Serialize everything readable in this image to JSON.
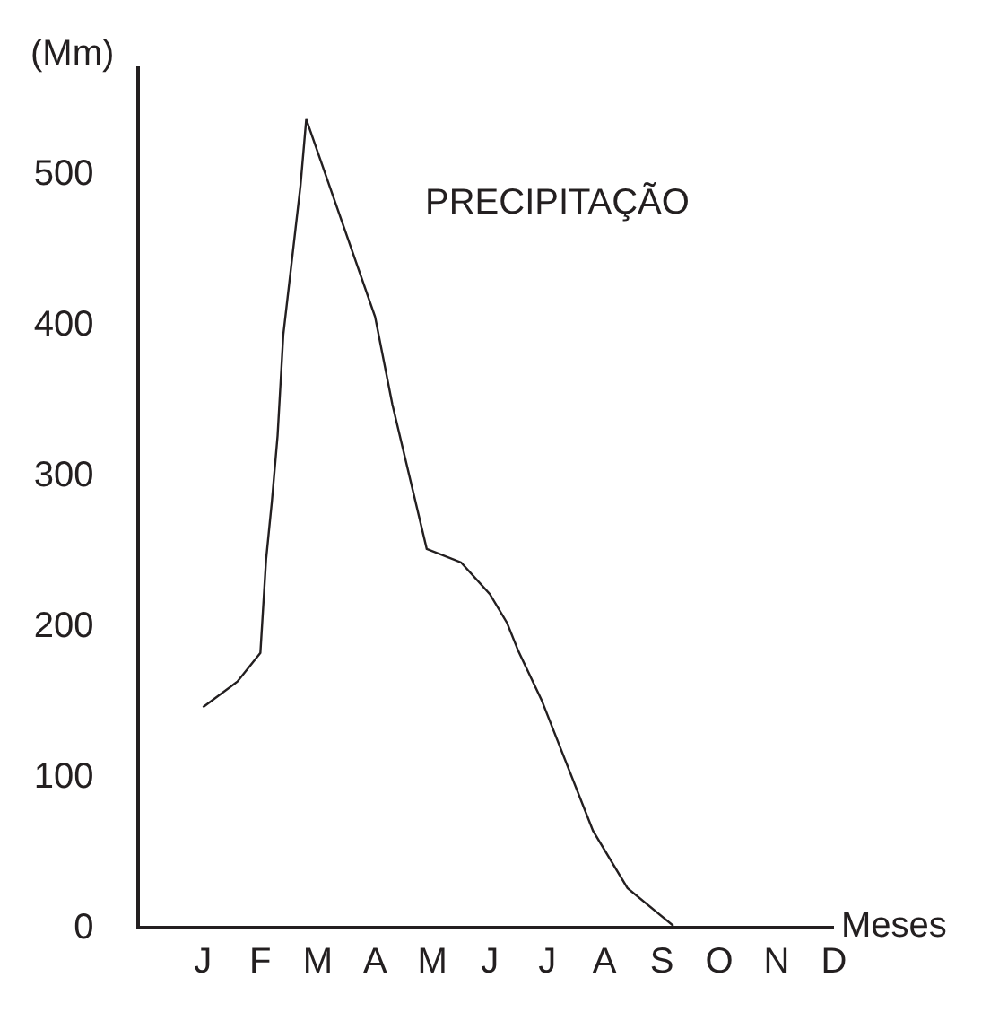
{
  "chart_data": {
    "type": "line",
    "title": "PRECIPITAÇÃO",
    "xlabel": "Meses",
    "ylabel": "(Mm)",
    "categories": [
      "J",
      null,
      null,
      null,
      null,
      null,
      null,
      null,
      null,
      null,
      "F",
      null,
      null,
      null,
      null,
      null,
      null,
      null,
      null,
      null,
      "M",
      null,
      null,
      null,
      null,
      null,
      null,
      null,
      null,
      null,
      "A",
      null,
      null,
      null,
      null,
      null,
      null,
      null,
      null,
      null,
      "M",
      null,
      null,
      null,
      null,
      null,
      null,
      null,
      null,
      null,
      "J",
      null,
      null,
      null,
      null,
      null,
      null,
      null,
      null,
      null,
      "J",
      null,
      null,
      null,
      null,
      null,
      null,
      null,
      null,
      null,
      "A",
      null,
      null,
      null,
      null,
      null,
      null,
      null,
      null,
      null,
      "S",
      null,
      null,
      null,
      null,
      null,
      null,
      null,
      null,
      null,
      "O",
      null,
      null,
      null,
      null,
      null,
      null,
      null,
      null,
      null,
      "N",
      null,
      null,
      null,
      null,
      null,
      null,
      null,
      null,
      null,
      "D"
    ],
    "series": [
      {
        "color": "#231f20",
        "values": [
          145,
          null,
          null,
          null,
          null,
          null,
          162,
          null,
          null,
          null,
          181,
          243,
          281,
          325,
          392,
          null,
          null,
          491,
          535,
          null,
          null,
          null,
          null,
          null,
          null,
          null,
          null,
          null,
          null,
          null,
          404,
          null,
          null,
          346,
          null,
          null,
          null,
          null,
          null,
          250,
          null,
          null,
          null,
          null,
          null,
          241,
          null,
          null,
          null,
          null,
          220,
          null,
          null,
          201,
          null,
          182,
          null,
          null,
          null,
          150,
          null,
          null,
          null,
          null,
          null,
          null,
          null,
          null,
          63,
          null,
          null,
          null,
          null,
          null,
          25,
          null,
          null,
          null,
          null,
          null,
          null,
          null,
          0,
          null,
          null,
          null,
          null,
          null,
          null,
          null,
          null,
          null,
          null,
          null,
          null,
          null,
          null,
          null,
          null,
          null,
          null,
          null,
          null,
          null,
          null,
          null,
          null,
          null,
          null,
          null,
          null
        ]
      }
    ],
    "ylim": [
      0,
      570
    ],
    "yticks": [
      0,
      100,
      200,
      300,
      400,
      500
    ],
    "marker": "none",
    "line_style": "solid"
  }
}
